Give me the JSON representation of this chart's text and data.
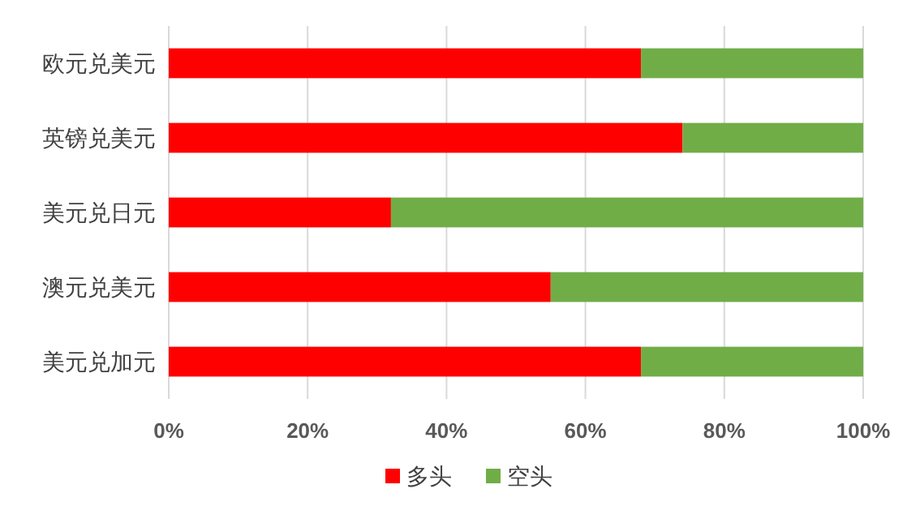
{
  "chart_data": {
    "type": "bar",
    "orientation": "horizontal",
    "stacked": true,
    "categories": [
      "欧元兑美元",
      "英镑兑美元",
      "美元兑日元",
      "澳元兑美元",
      "美元兑加元"
    ],
    "series": [
      {
        "name": "多头",
        "color": "#ff0000",
        "values": [
          68,
          74,
          32,
          55,
          68
        ]
      },
      {
        "name": "空头",
        "color": "#70ad47",
        "values": [
          32,
          26,
          68,
          45,
          32
        ]
      }
    ],
    "xlim": [
      0,
      100
    ],
    "xticks": [
      {
        "value": 0,
        "label": "0%"
      },
      {
        "value": 20,
        "label": "20%"
      },
      {
        "value": 40,
        "label": "40%"
      },
      {
        "value": 60,
        "label": "60%"
      },
      {
        "value": 80,
        "label": "80%"
      },
      {
        "value": 100,
        "label": "100%"
      }
    ],
    "grid": "x",
    "legend": "bottom"
  }
}
